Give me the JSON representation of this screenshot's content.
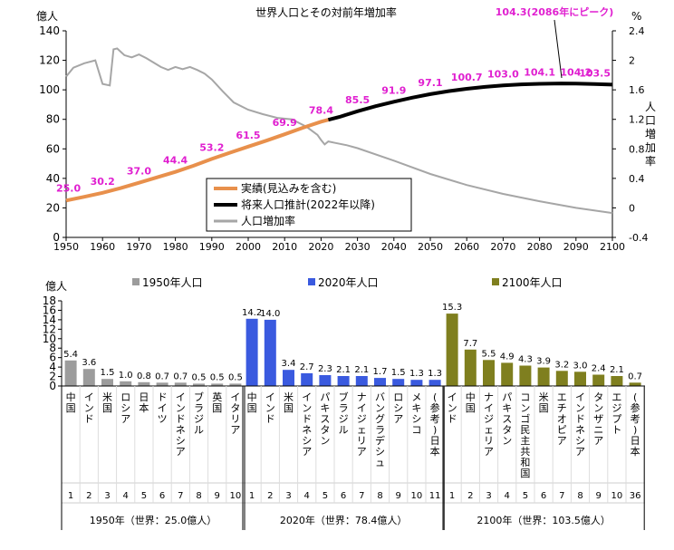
{
  "colors": {
    "actual": "#E8904C",
    "projection": "#000000",
    "growth": "#A6A6A6",
    "label": "#E020D0",
    "bar1950": "#9C9C9C",
    "bar2020": "#3A5ADF",
    "bar2100": "#7F7F1F"
  },
  "chart_data": [
    {
      "type": "line",
      "title": "世界人口とその対前年増加率",
      "y_left_unit": "億人",
      "y_right_unit": "%",
      "y_right_label": "人口増加率",
      "xlim": [
        1950,
        2100
      ],
      "x_ticks": [
        "1950",
        "1960",
        "1970",
        "1980",
        "1990",
        "2000",
        "2010",
        "2020",
        "2030",
        "2040",
        "2050",
        "2060",
        "2070",
        "2080",
        "2090",
        "2100"
      ],
      "ylim_left": [
        0,
        140
      ],
      "y_left_ticks": [
        "0",
        "20",
        "40",
        "60",
        "80",
        "100",
        "120",
        "140"
      ],
      "ylim_right": [
        -0.4,
        2.4
      ],
      "y_right_ticks": [
        "-0.4",
        "0",
        "0.4",
        "0.8",
        "1.2",
        "1.6",
        "2",
        "2.4"
      ],
      "peak_annotation": "104.3(2086年にピーク)",
      "legend": [
        "実績(見込みを含む)",
        "将来人口推計(2022年以降)",
        "人口増加率"
      ],
      "series": [
        {
          "name": "実績(見込みを含む)",
          "x": [
            1950,
            1955,
            1960,
            1965,
            1970,
            1975,
            1980,
            1985,
            1990,
            1995,
            2000,
            2005,
            2010,
            2015,
            2020,
            2022
          ],
          "values": [
            25.0,
            27.5,
            30.2,
            33.4,
            37.0,
            40.7,
            44.4,
            48.6,
            53.2,
            57.4,
            61.5,
            65.6,
            69.9,
            74.3,
            78.4,
            79.7
          ]
        },
        {
          "name": "将来人口推計(2022年以降)",
          "x": [
            2022,
            2025,
            2030,
            2035,
            2040,
            2045,
            2050,
            2055,
            2060,
            2065,
            2070,
            2075,
            2080,
            2086,
            2090,
            2095,
            2100
          ],
          "values": [
            79.7,
            81.6,
            85.5,
            88.9,
            91.9,
            94.7,
            97.1,
            99.1,
            100.7,
            102.0,
            103.0,
            103.7,
            104.1,
            104.3,
            104.2,
            103.9,
            103.5
          ]
        },
        {
          "name": "人口増加率",
          "x": [
            1950,
            1952,
            1955,
            1958,
            1960,
            1962,
            1963,
            1964,
            1966,
            1968,
            1970,
            1972,
            1974,
            1976,
            1978,
            1980,
            1982,
            1984,
            1986,
            1988,
            1990,
            1993,
            1996,
            2000,
            2004,
            2008,
            2012,
            2016,
            2019,
            2020,
            2021,
            2022,
            2024,
            2027,
            2030,
            2040,
            2050,
            2060,
            2070,
            2080,
            2090,
            2100
          ],
          "values": [
            1.78,
            1.9,
            1.96,
            2.0,
            1.68,
            1.66,
            2.15,
            2.16,
            2.07,
            2.04,
            2.08,
            2.03,
            1.97,
            1.91,
            1.87,
            1.91,
            1.88,
            1.91,
            1.87,
            1.82,
            1.74,
            1.58,
            1.43,
            1.33,
            1.27,
            1.22,
            1.2,
            1.1,
            0.99,
            0.92,
            0.86,
            0.9,
            0.88,
            0.85,
            0.81,
            0.64,
            0.46,
            0.31,
            0.19,
            0.09,
            0.0,
            -0.07
          ]
        }
      ],
      "data_labels": [
        {
          "x": 1950,
          "label": "25.0"
        },
        {
          "x": 1960,
          "label": "30.2"
        },
        {
          "x": 1970,
          "label": "37.0"
        },
        {
          "x": 1980,
          "label": "44.4"
        },
        {
          "x": 1990,
          "label": "53.2"
        },
        {
          "x": 2000,
          "label": "61.5"
        },
        {
          "x": 2010,
          "label": "69.9"
        },
        {
          "x": 2020,
          "label": "78.4"
        },
        {
          "x": 2030,
          "label": "85.5"
        },
        {
          "x": 2040,
          "label": "91.9"
        },
        {
          "x": 2050,
          "label": "97.1"
        },
        {
          "x": 2060,
          "label": "100.7"
        },
        {
          "x": 2070,
          "label": "103.0"
        },
        {
          "x": 2080,
          "label": "104.1"
        },
        {
          "x": 2090,
          "label": "104.2"
        },
        {
          "x": 2100,
          "label": "103.5"
        }
      ]
    },
    {
      "type": "bar",
      "y_unit": "億人",
      "ylim": [
        0,
        18
      ],
      "y_ticks": [
        "0",
        "2",
        "4",
        "6",
        "8",
        "10",
        "12",
        "14",
        "16",
        "18"
      ],
      "legend": [
        "1950年人口",
        "2020年人口",
        "2100年人口"
      ],
      "groups": [
        {
          "name": "1950年人口",
          "caption": "1950年（世界：25.0億人）",
          "categories": [
            "中国",
            "インド",
            "米国",
            "ロシア",
            "日本",
            "ドイツ",
            "インドネシア",
            "ブラジル",
            "英国",
            "イタリア"
          ],
          "ranks": [
            "1",
            "2",
            "3",
            "4",
            "5",
            "6",
            "7",
            "8",
            "9",
            "10"
          ],
          "values": [
            5.4,
            3.6,
            1.5,
            1.0,
            0.8,
            0.7,
            0.7,
            0.5,
            0.5,
            0.5
          ],
          "labels": [
            "5.4",
            "3.6",
            "1.5",
            "1.0",
            "0.8",
            "0.7",
            "0.7",
            "0.5",
            "0.5",
            "0.5"
          ]
        },
        {
          "name": "2020年人口",
          "caption": "2020年（世界：78.4億人）",
          "categories": [
            "中国",
            "インド",
            "米国",
            "インドネシア",
            "パキスタン",
            "ブラジル",
            "ナイジェリア",
            "バングラデシュ",
            "ロシア",
            "メキシコ",
            "(参考)日本"
          ],
          "ranks": [
            "1",
            "2",
            "3",
            "4",
            "5",
            "6",
            "7",
            "8",
            "9",
            "10",
            "11"
          ],
          "values": [
            14.2,
            14.0,
            3.4,
            2.7,
            2.3,
            2.1,
            2.1,
            1.7,
            1.5,
            1.3,
            1.3
          ],
          "labels": [
            "14.2",
            "14.0",
            "3.4",
            "2.7",
            "2.3",
            "2.1",
            "2.1",
            "1.7",
            "1.5",
            "1.3",
            "1.3"
          ]
        },
        {
          "name": "2100年人口",
          "caption": "2100年（世界：103.5億人）",
          "categories": [
            "インド",
            "中国",
            "ナイジェリア",
            "パキスタン",
            "コンゴ民主共和国",
            "米国",
            "エチオピア",
            "インドネシア",
            "タンザニア",
            "エジプト",
            "(参考)日本"
          ],
          "ranks": [
            "1",
            "2",
            "3",
            "4",
            "5",
            "6",
            "7",
            "8",
            "9",
            "10",
            "36"
          ],
          "values": [
            15.3,
            7.7,
            5.5,
            4.9,
            4.3,
            3.9,
            3.2,
            3.0,
            2.4,
            2.1,
            0.7
          ],
          "labels": [
            "15.3",
            "7.7",
            "5.5",
            "4.9",
            "4.3",
            "3.9",
            "3.2",
            "3.0",
            "2.4",
            "2.1",
            "0.7"
          ]
        }
      ]
    }
  ]
}
